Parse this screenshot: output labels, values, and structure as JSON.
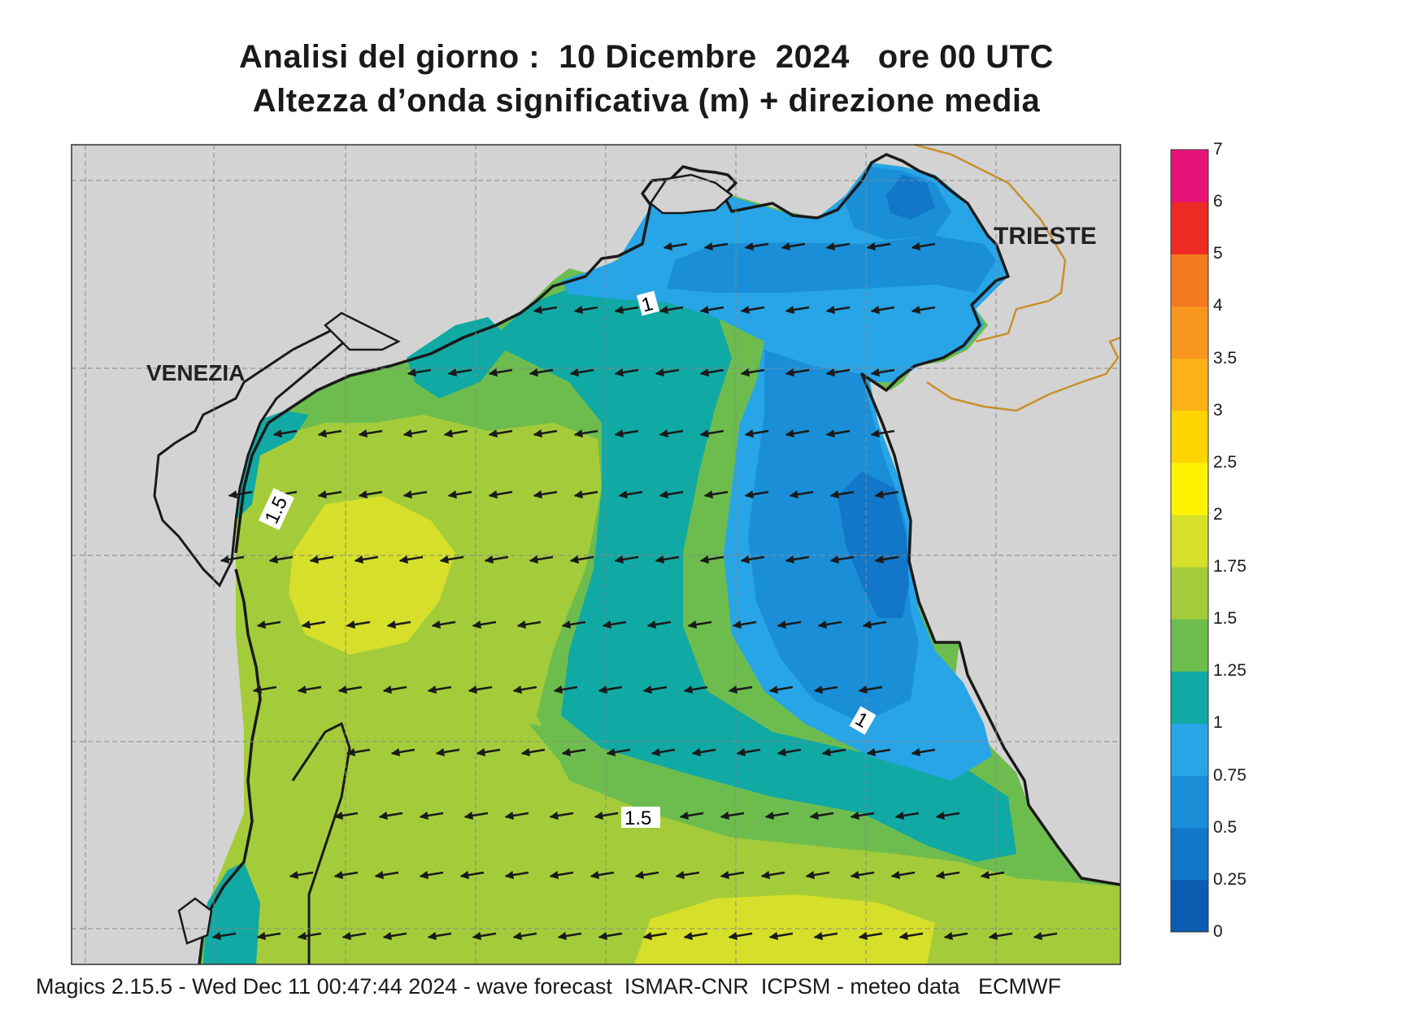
{
  "title_line1": "Analisi del giorno :  10 Dicembre  2024   ore 00 UTC",
  "title_line2": "Altezza d’onda significativa (m) + direzione media",
  "place_labels": [
    "VENEZIA",
    "TRIESTE"
  ],
  "contour_labels": [
    "1",
    "1.5",
    "1",
    "1.5"
  ],
  "footer": "Magics 2.15.5 - Wed Dec 11 00:47:44 2024 - wave forecast  ISMAR-CNR  ICPSM - meteo data   ECMWF",
  "colorbar": {
    "ticks": [
      "0",
      "0.25",
      "0.5",
      "0.75",
      "1",
      "1.25",
      "1.5",
      "1.75",
      "2",
      "2.5",
      "3",
      "3.5",
      "4",
      "5",
      "6",
      "7"
    ],
    "colors": [
      "#0a5db0",
      "#1277c8",
      "#1a8fd8",
      "#27a5e6",
      "#11a9a4",
      "#6dbd4e",
      "#a4cc3a",
      "#d6df2a",
      "#fff200",
      "#ffd500",
      "#fbb117",
      "#f8961e",
      "#f47a20",
      "#ee2a24",
      "#e8137a"
    ]
  },
  "colors": {
    "land": "#d3d3d3",
    "coast": "#1a1a1a",
    "border": "#c8902a",
    "arrow": "#1a1a1a"
  },
  "wave_direction": "from east-north-east, towards west-south-west"
}
